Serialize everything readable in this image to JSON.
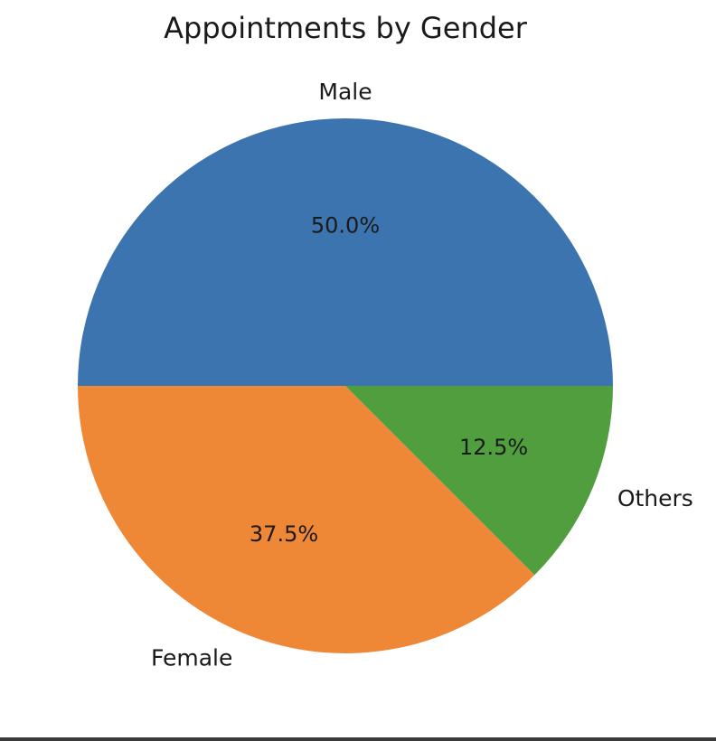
{
  "chart_data": {
    "type": "pie",
    "title": "Appointments by Gender",
    "slices": [
      {
        "label": "Male",
        "value": 50.0,
        "pct_label": "50.0%",
        "color": "#3b74ae"
      },
      {
        "label": "Female",
        "value": 37.5,
        "pct_label": "37.5%",
        "color": "#ee8836"
      },
      {
        "label": "Others",
        "value": 12.5,
        "pct_label": "12.5%",
        "color": "#519e3e"
      }
    ],
    "start_angle": "0 degrees (3 o'clock), counter-clockwise",
    "legend": "none"
  }
}
